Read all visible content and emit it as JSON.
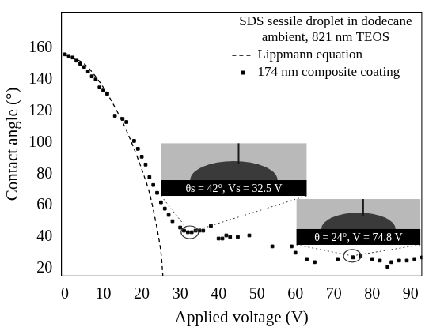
{
  "chart_data": {
    "type": "scatter",
    "title": "SDS sessile droplet in dodecane ambient, 821 nm TEOS",
    "x_label": "Applied voltage (V)",
    "y_label": "Contact angle (°)",
    "xlim": [
      -1,
      93
    ],
    "xticks": [
      0,
      10,
      20,
      30,
      40,
      50,
      60,
      70,
      80,
      90
    ],
    "ylim": [
      15,
      183
    ],
    "yticks": [
      20,
      40,
      60,
      80,
      100,
      120,
      140,
      160
    ],
    "grid": false,
    "legend": "upper right",
    "series": [
      {
        "name": "Lippmann equation",
        "type": "line",
        "color": "#000000",
        "marker": "none",
        "line_style": "dashed",
        "x": [
          0,
          5,
          10,
          15,
          18,
          20,
          22,
          24,
          25,
          25.5
        ],
        "values": [
          156,
          150,
          135,
          113,
          96,
          83,
          68,
          45,
          30,
          15
        ]
      },
      {
        "name": "174 nm composite coating",
        "type": "scatter",
        "color": "#000000",
        "marker": "square",
        "line_style": "none",
        "x": [
          0,
          1,
          2,
          3,
          4,
          5,
          6,
          7,
          8,
          9,
          10,
          11,
          13,
          15,
          16,
          18,
          19,
          20,
          21,
          22,
          23,
          24,
          25,
          26,
          27,
          28,
          30,
          31,
          32,
          33,
          34,
          35,
          36,
          38,
          40,
          41,
          42,
          43,
          45,
          48,
          54,
          59,
          60,
          63,
          65,
          71,
          75,
          77,
          80,
          82,
          84,
          85,
          87,
          89,
          91,
          93
        ],
        "values": [
          156,
          155,
          154,
          152,
          150,
          148,
          145,
          142,
          140,
          135,
          133,
          131,
          117,
          115,
          113,
          101,
          96,
          91,
          86,
          78,
          73,
          68,
          62,
          58,
          54,
          50,
          46,
          44,
          43,
          43,
          44,
          44,
          44,
          47,
          39,
          39,
          41,
          40,
          40,
          41,
          34,
          34,
          30,
          26,
          24,
          26,
          27,
          28,
          26,
          25,
          21,
          24,
          25,
          25,
          26,
          27
        ]
      }
    ],
    "annotations": [
      {
        "text": "θs = 42°, Vs = 32.5 V",
        "x": 32.5,
        "y": 43
      },
      {
        "text": "θ = 24°, V = 74.8 V",
        "x": 74.8,
        "y": 28
      }
    ]
  }
}
